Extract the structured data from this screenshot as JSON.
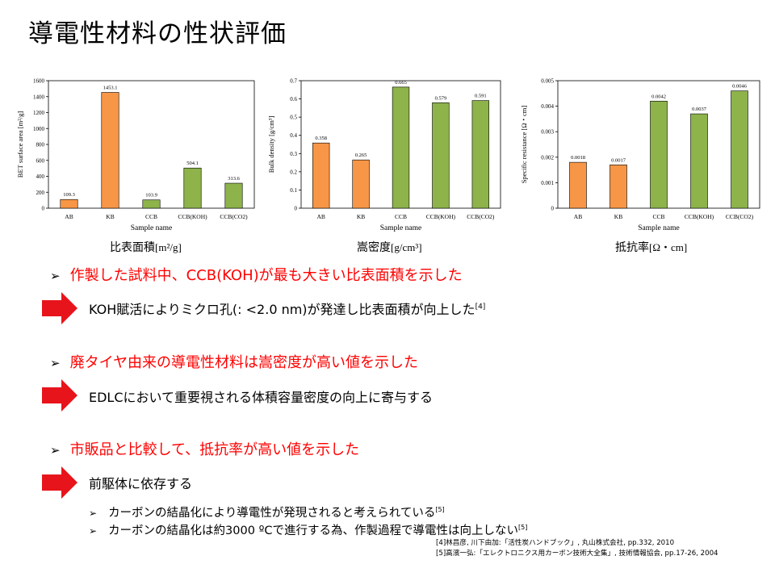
{
  "title": "導電性材料の性状評価",
  "colors": {
    "orange": "#f79646",
    "green": "#8db34a",
    "bullet_red": "#ff0000",
    "arrow_red": "#e8141b"
  },
  "chart_data": [
    {
      "type": "bar",
      "categories": [
        "AB",
        "KB",
        "CCB",
        "CCB(KOH)",
        "CCB(CO2)"
      ],
      "values": [
        109.3,
        1453.1,
        103.9,
        504.1,
        313.6
      ],
      "value_labels": [
        "109.3",
        "1453.1",
        "103.9",
        "504.1",
        "313.6"
      ],
      "bar_colors": [
        "#f79646",
        "#f79646",
        "#8db34a",
        "#8db34a",
        "#8db34a"
      ],
      "ylim": [
        0,
        1600
      ],
      "yticks": [
        "0",
        "200",
        "400",
        "600",
        "800",
        "1000",
        "1200",
        "1400",
        "1600"
      ],
      "xlabel": "Sample name",
      "ylabel": "BET surface area [m²/g]",
      "caption": "比表面積",
      "caption_unit": "[m²/g]"
    },
    {
      "type": "bar",
      "categories": [
        "AB",
        "KB",
        "CCB",
        "CCB(KOH)",
        "CCB(CO2)"
      ],
      "values": [
        0.358,
        0.265,
        0.665,
        0.579,
        0.591
      ],
      "value_labels": [
        "0.358",
        "0.265",
        "0.665",
        "0.579",
        "0.591"
      ],
      "bar_colors": [
        "#f79646",
        "#f79646",
        "#8db34a",
        "#8db34a",
        "#8db34a"
      ],
      "ylim": [
        0,
        0.7
      ],
      "yticks": [
        "0",
        "0.1",
        "0.2",
        "0.3",
        "0.4",
        "0.5",
        "0.6",
        "0.7"
      ],
      "xlabel": "Sample name",
      "ylabel": "Bulk density [g/cm³]",
      "caption": "嵩密度",
      "caption_unit": "[g/cm³]"
    },
    {
      "type": "bar",
      "categories": [
        "AB",
        "KB",
        "CCB",
        "CCB(KOH)",
        "CCB(CO2)"
      ],
      "values": [
        0.0018,
        0.0017,
        0.0042,
        0.0037,
        0.0046
      ],
      "value_labels": [
        "0.0018",
        "0.0017",
        "0.0042",
        "0.0037",
        "0.0046"
      ],
      "bar_colors": [
        "#f79646",
        "#f79646",
        "#8db34a",
        "#8db34a",
        "#8db34a"
      ],
      "ylim": [
        0,
        0.005
      ],
      "yticks": [
        "0",
        "0.001",
        "0.002",
        "0.003",
        "0.004",
        "0.005"
      ],
      "xlabel": "Sample name",
      "ylabel": "Specific resistance [Ω・cm]",
      "caption": "抵抗率",
      "caption_unit": "[Ω・cm]"
    }
  ],
  "bullets": [
    {
      "text": "作製した試料中、CCB(KOH)が最も大きい比表面積を示した"
    },
    {
      "text": "廃タイヤ由来の導電性材料は嵩密度が高い値を示した"
    },
    {
      "text": "市販品と比較して、抵抗率が高い値を示した"
    }
  ],
  "bullet_mark": "➢",
  "arrows": [
    {
      "text": "KOH賦活によりミクロ孔(: <2.0 nm)が発達し比表面積が向上した",
      "ref": "[4]"
    },
    {
      "text": "EDLCにおいて重要視される体積容量密度の向上に寄与する",
      "ref": ""
    },
    {
      "text": "前駆体に依存する",
      "ref": ""
    }
  ],
  "sub_bullets": [
    {
      "text": "カーボンの結晶化により導電性が発現されると考えられている",
      "ref": "[5]"
    },
    {
      "text": "カーボンの結晶化は約3000 ºCで進行する為、作製過程で導電性は向上しない",
      "ref": "[5]"
    }
  ],
  "references": [
    "[4]林昌彦, 川下由加:「活性炭ハンドブック」, 丸山株式会社, pp.332, 2010",
    "[5]高濱一弘:「エレクトロニクス用カーボン技術大全集」, 技術情報協会, pp.17-26, 2004"
  ]
}
